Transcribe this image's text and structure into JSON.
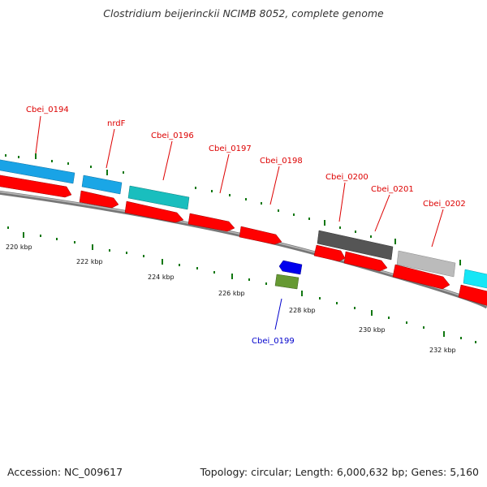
{
  "title": "Clostridium beijerinckii NCIMB 8052, complete genome",
  "footer": {
    "accession": "Accession: NC_009617",
    "summary": "Topology: circular; Length: 6,000,632 bp; Genes: 5,160"
  },
  "colors": {
    "forward_label": "#dd0000",
    "reverse_label": "#0000cc",
    "cds": "#ff0000",
    "tick": "#117711",
    "backbone": "#888888"
  },
  "genes": [
    {
      "id": "Cbei_0194",
      "strand": "forward",
      "label_color": "#dd0000"
    },
    {
      "id": "nrdF",
      "strand": "forward",
      "label_color": "#dd0000"
    },
    {
      "id": "Cbei_0196",
      "strand": "forward",
      "label_color": "#dd0000"
    },
    {
      "id": "Cbei_0197",
      "strand": "forward",
      "label_color": "#dd0000"
    },
    {
      "id": "Cbei_0198",
      "strand": "forward",
      "label_color": "#dd0000"
    },
    {
      "id": "Cbei_0199",
      "strand": "reverse",
      "label_color": "#0000cc"
    },
    {
      "id": "Cbei_0200",
      "strand": "forward",
      "label_color": "#dd0000"
    },
    {
      "id": "Cbei_0201",
      "strand": "forward",
      "label_color": "#dd0000"
    },
    {
      "id": "Cbei_0202",
      "strand": "forward",
      "label_color": "#dd0000"
    }
  ],
  "scale_labels": [
    "220 kbp",
    "222 kbp",
    "224 kbp",
    "226 kbp",
    "228 kbp",
    "230 kbp",
    "232 kbp"
  ]
}
